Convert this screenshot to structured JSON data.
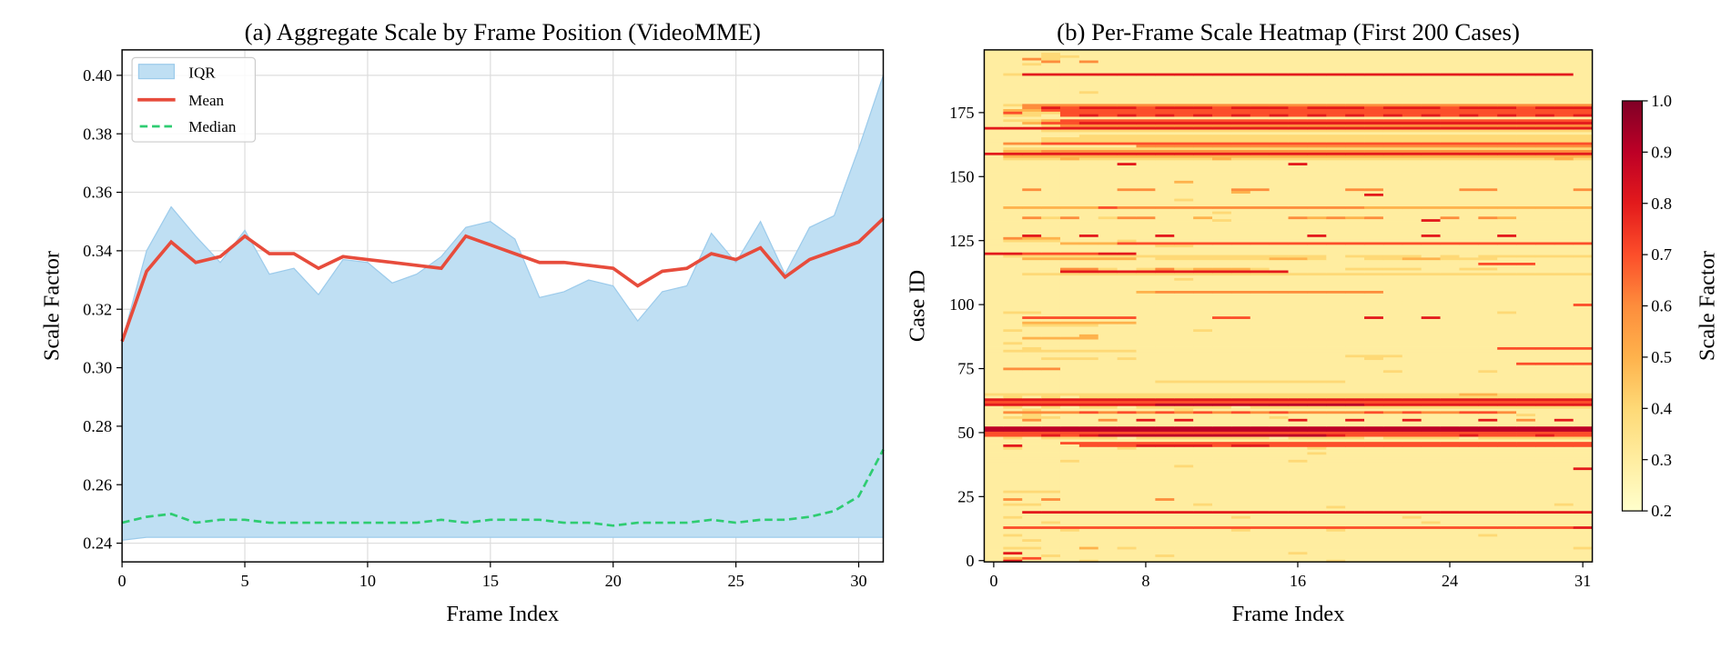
{
  "chart_data": [
    {
      "type": "line",
      "title": "(a) Aggregate Scale by Frame Position (VideoMME)",
      "xlabel": "Frame Index",
      "ylabel": "Scale Factor",
      "xlim": [
        0,
        31
      ],
      "ylim": [
        0.2336,
        0.4087
      ],
      "xticks": [
        0,
        5,
        10,
        15,
        20,
        25,
        30
      ],
      "yticks": [
        "0.24",
        "0.26",
        "0.28",
        "0.30",
        "0.32",
        "0.34",
        "0.36",
        "0.38",
        "0.40"
      ],
      "grid": true,
      "legend_placement": "top-left",
      "legend": [
        "IQR",
        "Mean",
        "Median"
      ],
      "colors": {
        "iqr_fill": "#bfdff3",
        "iqr_edge": "#9ccbeb",
        "mean": "#e74c3c",
        "median": "#2ecc71"
      },
      "x": [
        0,
        1,
        2,
        3,
        4,
        5,
        6,
        7,
        8,
        9,
        10,
        11,
        12,
        13,
        14,
        15,
        16,
        17,
        18,
        19,
        20,
        21,
        22,
        23,
        24,
        25,
        26,
        27,
        28,
        29,
        30,
        31
      ],
      "series": [
        {
          "name": "Mean",
          "values": [
            0.309,
            0.333,
            0.343,
            0.336,
            0.338,
            0.345,
            0.339,
            0.339,
            0.334,
            0.338,
            0.337,
            0.336,
            0.335,
            0.334,
            0.345,
            0.342,
            0.339,
            0.336,
            0.336,
            0.335,
            0.334,
            0.328,
            0.333,
            0.334,
            0.339,
            0.337,
            0.341,
            0.331,
            0.337,
            0.34,
            0.343,
            0.351
          ]
        },
        {
          "name": "Median",
          "values": [
            0.247,
            0.249,
            0.25,
            0.247,
            0.248,
            0.248,
            0.247,
            0.247,
            0.247,
            0.247,
            0.247,
            0.247,
            0.247,
            0.248,
            0.247,
            0.248,
            0.248,
            0.248,
            0.247,
            0.247,
            0.246,
            0.247,
            0.247,
            0.247,
            0.248,
            0.247,
            0.248,
            0.248,
            0.249,
            0.251,
            0.256,
            0.272
          ]
        },
        {
          "name": "IQR",
          "lower": [
            0.241,
            0.242,
            0.242,
            0.242,
            0.242,
            0.242,
            0.242,
            0.242,
            0.242,
            0.242,
            0.242,
            0.242,
            0.242,
            0.242,
            0.242,
            0.242,
            0.242,
            0.242,
            0.242,
            0.242,
            0.242,
            0.242,
            0.242,
            0.242,
            0.242,
            0.242,
            0.242,
            0.242,
            0.242,
            0.242,
            0.242,
            0.242
          ],
          "upper": [
            0.309,
            0.34,
            0.355,
            0.345,
            0.336,
            0.347,
            0.332,
            0.334,
            0.325,
            0.337,
            0.336,
            0.329,
            0.332,
            0.338,
            0.348,
            0.35,
            0.344,
            0.324,
            0.326,
            0.33,
            0.328,
            0.316,
            0.326,
            0.328,
            0.346,
            0.336,
            0.35,
            0.332,
            0.348,
            0.352,
            0.375,
            0.4
          ]
        }
      ]
    },
    {
      "type": "heatmap",
      "title": "(b) Per-Frame Scale Heatmap (First 200 Cases)",
      "xlabel": "Frame Index",
      "ylabel": "Case ID",
      "xticks": [
        0,
        8,
        16,
        24,
        31
      ],
      "yticks": [
        0,
        25,
        50,
        75,
        100,
        125,
        150,
        175
      ],
      "colorbar": {
        "label": "Scale Factor",
        "range": [
          0.2,
          1.0
        ],
        "ticks": [
          "0.2",
          "0.3",
          "0.4",
          "0.5",
          "0.6",
          "0.7",
          "0.8",
          "0.9",
          "1.0"
        ],
        "colormap": "YlOrRd",
        "colors": [
          "#ffffcc",
          "#ffeda0",
          "#fed976",
          "#feb24c",
          "#fd8d3c",
          "#fc4e2a",
          "#e31a1c",
          "#bd0026",
          "#800026"
        ]
      },
      "cell_levels": [
        0.2,
        0.3,
        0.4,
        0.5,
        0.6,
        0.7,
        0.8,
        0.9,
        1.0
      ],
      "rows": [
        "16111211111111111121111111111111",
        "13511111111111111111111111111111",
        "11121111121111111111111111111111",
        "16111111111111112111111111111111",
        "11111111111111111111111111111111",
        "12211312111111111111111111111112",
        "11111111111111111111111111111111",
        "11111111111111111111111111111111",
        "11211111111111111111111111111111",
        "11111111111111111111111111111111",
        "12111111111111111111111111211111",
        "11111111111111111111111111111111",
        "11112111111112111121111111111111",
        "15555555555555555555555555555556",
        "11111111111111111111111111111111",
        "11121111111111111111111211111111",
        "11111111111111111111111111111111",
        "12111111111112111111112111111111",
        "11111111111111111111111111111111",
        "11666666666666666666666666666666",
        "11111111111111111111111111111111",
        "11111111111111111121111111111111",
        "12211111111211111111111111111121",
        "11111111111111111111111111111111",
        "14141111141111111111111111111111",
        "11111111111111111111111111111111",
        "11111111111111111111111111111111",
        "12221111111111111111111111111111",
        "11111111111111111111111111111111",
        "11111111111111111111111111111111",
        "11111111111111111111111111111111",
        "11111111111111111111111111111111",
        "11111111111111111111111111111111",
        "11111111111111111111111111111111",
        "11111111111111111111111111111111",
        "11111111111111111111111111111111",
        "11111111111111111111111111111116",
        "11111111112111111111111111111111",
        "11111111111111111111111111111111",
        "11112111111111112111111111111111",
        "11111111111111111111111111111111",
        "11111111111111111111111111111111",
        "11111111111111111211111111111111",
        "11111111111111111111111111111111",
        "12111112111111111211111111111111",
        "16111555666656655555555555555555",
        "11115555555555555555555555555555",
        "11111111111111111111111111111111",
        "12122221222222212222122221222222",
        "55565677777777777765555556555655",
        "55555555555555555555555555555555",
        "77777777777777777777777777777777",
        "77777777777777777777777777777777",
        "11111111111111111111111111111111",
        "11111111111111111111111111111111",
        "11411141616111116116116111614161",
        "12221111111111121111111111111111",
        "11211111111111111111111111112111",
        "14444545454545454444545445541111",
        "11211111112111111111111111111111",
        "12121221222221222222222222222222",
        "66666666677777777777666666666666",
        "55555555555555555555555555555555",
        "66666666666666666666666666666666",
        "12121222222222222222222222222222",
        "22222222222222222222222223322222",
        "11111111111111111111111111111111",
        "11111111111111111111111111111111",
        "11111111111111111111111111111111",
        "11111111111111111111111111111111",
        "11111111122222222221111111111111",
        "11111111111111111111111111111111",
        "11111111111111111111111111111111",
        "11111111111111111111111111111111",
        "11111111111111111111121111211111",
        "14441111111111111111111111111111",
        "11111111111111111111111111111111",
        "11111111111111111111111111115555",
        "11111111111111111111111111111111",
        "11122212111111111111211111111111",
        "11111111111111111112221111111111",
        "11111111111111111111111111111111",
        "12222222111111111111111111111111",
        "11211111111111111111111111155555",
        "11111111111111111111111111111111",
        "12111111111111111111111111111111",
        "11111111111111111111111111111111",
        "11333311111111111111111111111111",
        "11111311111111111111111111111111",
        "11111111111111111111111111111111",
        "12111111111211111111111111111111",
        "11111111111111111111111111111111",
        "11222211111111111111111111111111",
        "11333333111111111111111111111111",
        "11111111111111111111111111111111",
        "11555555111155111111611611111111",
        "11111111111111111111111111111111",
        "12211111111111111111111111121111",
        "11111111111111111111111111111111",
        "11111111111111111111111111111111",
        "11111111111111111111111111111115",
        "11111111111111111111111111111111",
        "11111111111111111111111111111111",
        "11111111111111111111111111111111",
        "11111111111111111111111111111111",
        "11111111344444444444411111111111",
        "11111111111111111111111111111111",
        "11111111111111111111111111111111",
        "11111111111111111111111111111111",
        "11111111111111111111111111111111",
        "11111111112111111111111111111111",
        "11111111111111111111111111111111",
        "11222222222222222222222222222222",
        "11116666666666661111111111111111",
        "11114421242333211112222112211111",
        "11111111111111111111111111111111",
        "11111111111111111111111111555111",
        "11111111111111111111111111111111",
        "11333333122222233211223322211111",
        "12222222222222222212222121222222",
        "66555566111111111111111111111111",
        "11111111111111111111111111111111",
        "11111111111111111111111111111111",
        "11111111122111111111111111111111",
        "11113335555555555555555555555555",
        "12221112111111111111111111111111",
        "14331111111111111111111111111111",
        "11611611161111111611111611161111",
        "11111111111111111111111111111111",
        "11111111111111111111111111111111",
        "11111111111111111111111111111111",
        "11111111111111111111111111111111",
        "11111111111111111111111111111111",
        "11111111111121111111111611111111",
        "11424124411311114343411141431111",
        "11111111111111111111111111111111",
        "11111111111121111111111111111111",
        "11111111111111111111111111111111",
        "13333354444444444444333333333333",
        "11111111111111111111111111111111",
        "11111111111111111111111111111111",
        "11111111112111111111111111111111",
        "11111111111111111111111111111111",
        "11111111111111111111611111111111",
        "11111111111113111111111111111111",
        "11411114411114411114411114411114",
        "11111111111111111111111111111111",
        "11111111111111111111111111111111",
        "11111111113111111111111111111111",
        "11111111111111111111111111111111",
        "11111111111111111111111111111111",
        "11111111111111111111111111111111",
        "11111111111111111111111111111111",
        "11111111111111111111111111111111",
        "11111111111111111111111111111111",
        "11111116111111116111111111111111",
        "11111111111111111111111111111111",
        "12223222222232222222222222222232",
        "13333333333333333333333333333333",
        "66666666666666666666666666666666",
        "13344444444444444444444444444444",
        "12222222222222222222222222222222",
        "11111111444444444444444444444444",
        "14455555555555555555555555555555",
        "11122222222222222222222222222222",
        "11122222222222222222222222222222",
        "11111222222222222222222222222222",
        "11111111111111111111111111111111",
        "11122222222222222222222222222222",
        "66666666666666666666666666666666",
        "11124444444444444444444444444444",
        "11355666666666666666666666666666",
        "12235555555555555555555555555555",
        "11111111111111111111111111111111",
        "12215656565656565656565656565656",
        "15225555555555555555555555555555",
        "13355555555555555555555555555555",
        "11465666566656665666566656665666",
        "12444444444444444444444444444444",
        "11111111111111111111111111111111",
        "11111111111111111111111111111111",
        "11111111111111111111111111111111",
        "11111111111111111111111111111111",
        "11111211111111111111111111111111",
        "11111111111111111111111111111111",
        "11111111111111111111111111111111",
        "11111111111111111111111111111111",
        "11111111111111111111111111111111",
        "11111111111111111111111111111111",
        "11111111111111111111111111111111",
        "12666666666666666666666666666661",
        "11111111111111111111111111111111",
        "11111111111111111111111111111111",
        "11111111111111111111111111111111",
        "11211111111111111111111111111111",
        "11141411111111111111111111111111",
        "11421111111111111111111111111111",
        "11122111111111111111111111111111",
        "11121111111111111111111111111111",
        "11111111111111111111111111111111"
      ]
    }
  ]
}
